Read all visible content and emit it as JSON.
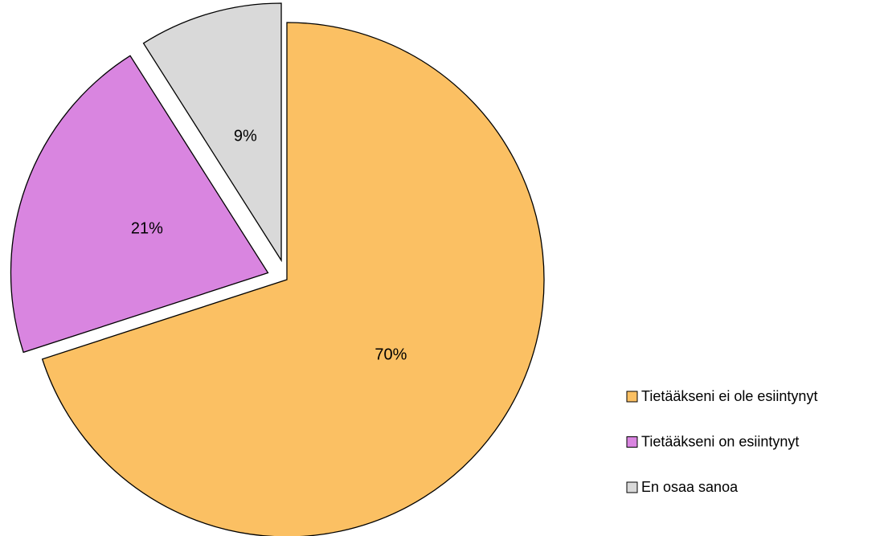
{
  "chart_data": {
    "type": "pie",
    "categories": [
      "Tietääkseni ei ole esiintynyt",
      "Tietääkseni on esiintynyt",
      "En osaa sanoa"
    ],
    "values": [
      70,
      21,
      9
    ],
    "value_labels": [
      "70%",
      "21%",
      "9%"
    ],
    "colors": [
      "#fbc063",
      "#d985e0",
      "#d9d9d9"
    ],
    "legend": "right"
  }
}
